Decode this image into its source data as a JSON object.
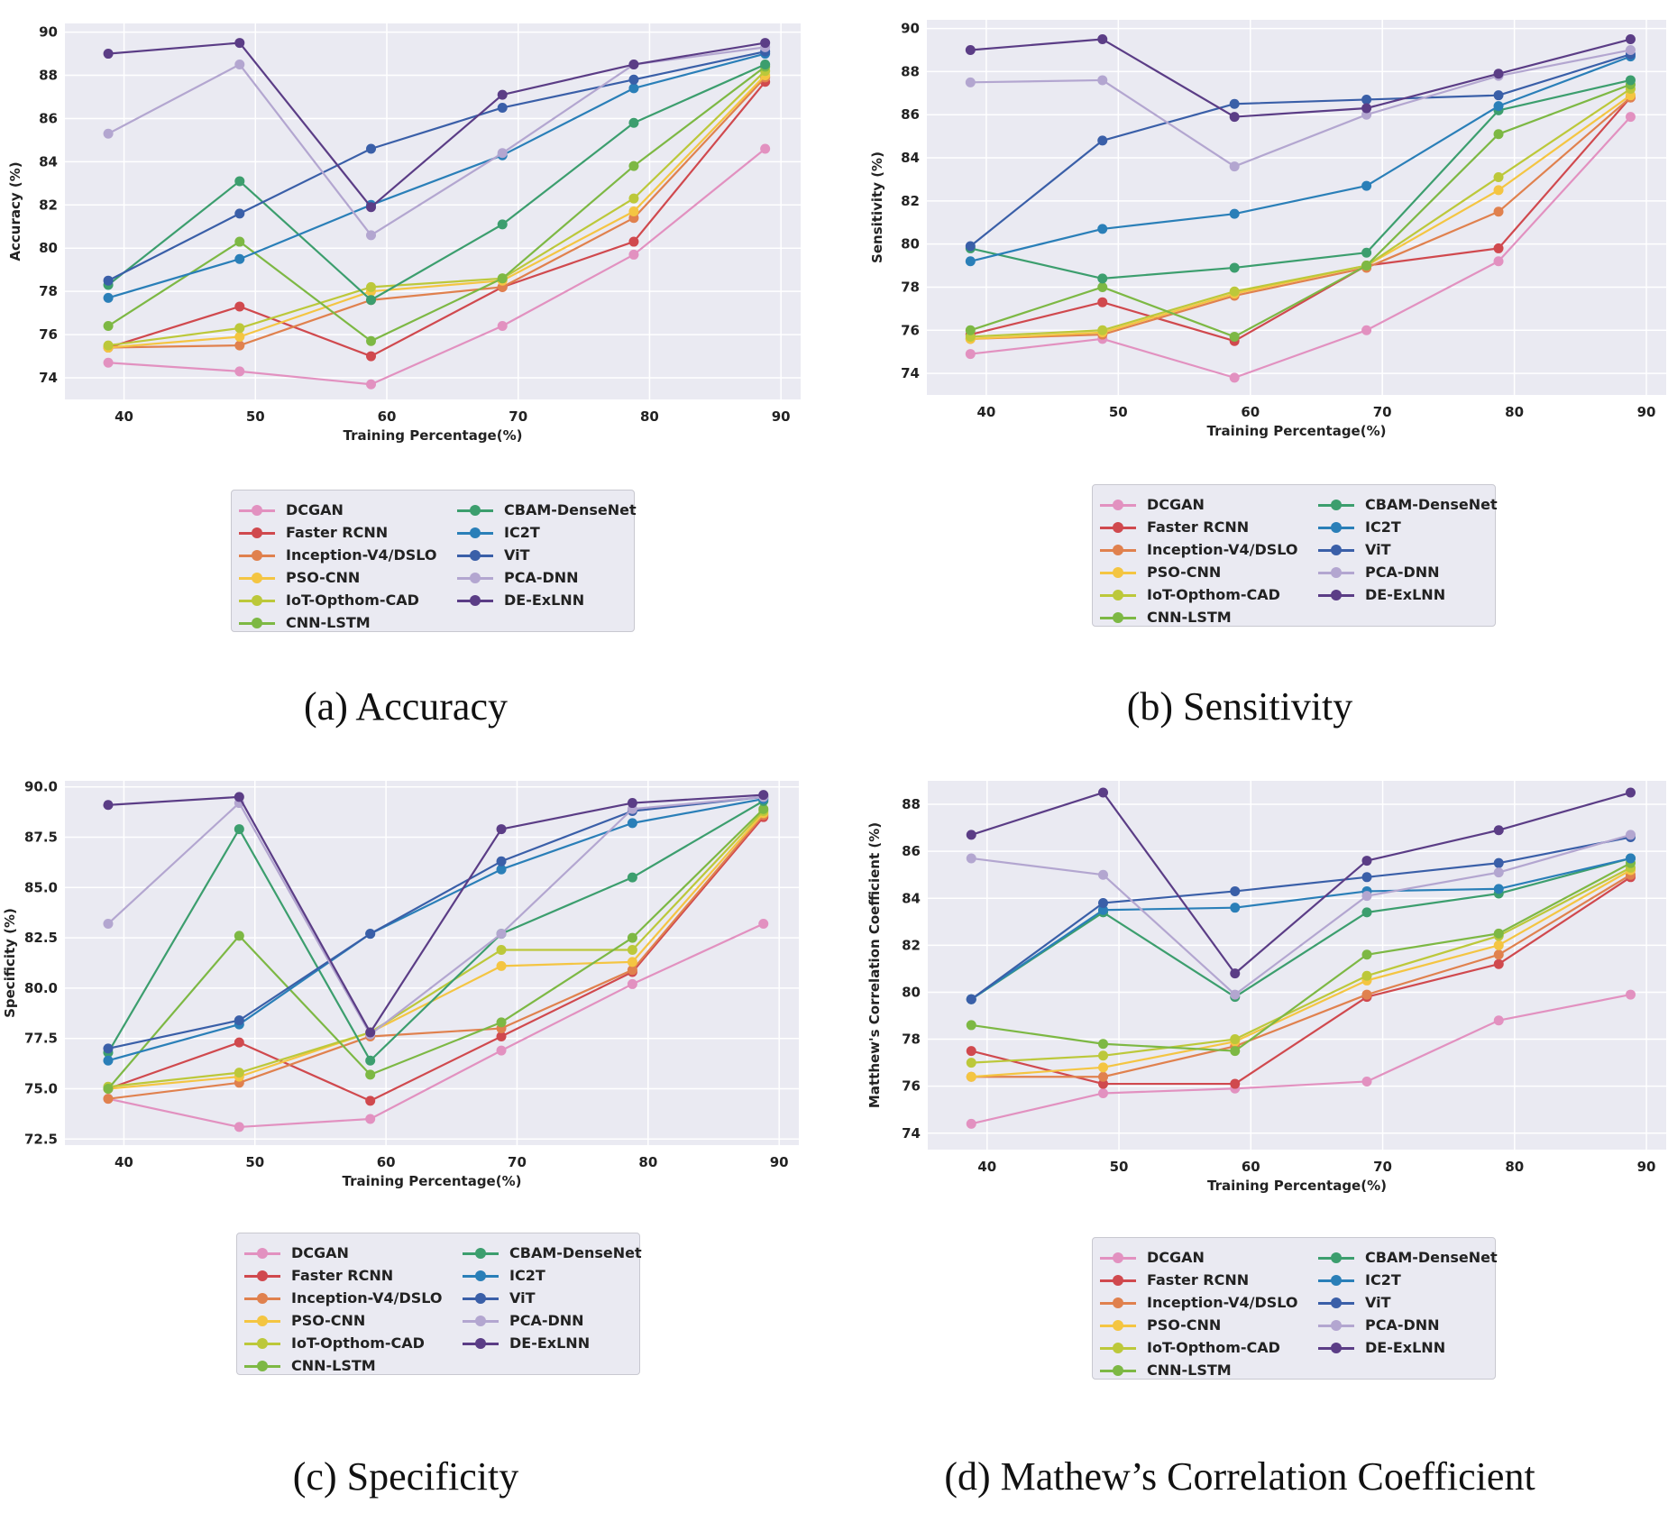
{
  "chart_data": [
    {
      "type": "line",
      "caption": "(a) Accuracy",
      "xlabel": "Training Percentage(%)",
      "ylabel": "Accuracy (%)",
      "x": [
        38.8,
        48.8,
        58.8,
        68.8,
        78.8,
        88.8
      ],
      "xticks": [
        40,
        50,
        60,
        70,
        80,
        90
      ],
      "xticklabels": [
        "40",
        "50",
        "60",
        "70",
        "80",
        "90"
      ],
      "xlim": [
        35.5,
        91.5
      ],
      "ylim": [
        73.0,
        90.4
      ],
      "yticks": [
        74,
        76,
        78,
        80,
        82,
        84,
        86,
        88,
        90
      ],
      "yticklabels": [
        "74",
        "76",
        "78",
        "80",
        "82",
        "84",
        "86",
        "88",
        "90"
      ],
      "grid": true,
      "legend_position": "below",
      "series": [
        {
          "name": "DCGAN",
          "color": "#e291c0",
          "values": [
            74.7,
            74.3,
            73.7,
            76.4,
            79.7,
            84.6
          ]
        },
        {
          "name": "Faster RCNN",
          "color": "#d0494e",
          "values": [
            75.4,
            77.3,
            75.0,
            78.2,
            80.3,
            87.7
          ]
        },
        {
          "name": "Inception-V4/DSLO",
          "color": "#e0814e",
          "values": [
            75.4,
            75.5,
            77.6,
            78.2,
            81.4,
            87.9
          ]
        },
        {
          "name": "PSO-CNN",
          "color": "#f4c542",
          "values": [
            75.4,
            75.9,
            78.0,
            78.5,
            81.7,
            88.0
          ]
        },
        {
          "name": "IoT-Opthom-CAD",
          "color": "#bcc83a",
          "values": [
            75.5,
            76.3,
            78.2,
            78.6,
            82.3,
            88.2
          ]
        },
        {
          "name": "CNN-LSTM",
          "color": "#7db844",
          "values": [
            76.4,
            80.3,
            75.7,
            78.6,
            83.8,
            88.4
          ]
        },
        {
          "name": "CBAM-DenseNet",
          "color": "#3c9e6e",
          "values": [
            78.3,
            83.1,
            77.6,
            81.1,
            85.8,
            88.5
          ]
        },
        {
          "name": "IC2T",
          "color": "#2a7fb8",
          "values": [
            77.7,
            79.5,
            82.0,
            84.3,
            87.4,
            89.0
          ]
        },
        {
          "name": "ViT",
          "color": "#3a5fa8",
          "values": [
            78.5,
            81.6,
            84.6,
            86.5,
            87.8,
            89.1
          ]
        },
        {
          "name": "PCA-DNN",
          "color": "#b3a6d0",
          "values": [
            85.3,
            88.5,
            80.6,
            84.4,
            88.5,
            89.3
          ]
        },
        {
          "name": "DE-ExLNN",
          "color": "#5b3d86",
          "values": [
            89.0,
            89.5,
            81.9,
            87.1,
            88.5,
            89.5
          ]
        }
      ]
    },
    {
      "type": "line",
      "caption": "(b) Sensitivity",
      "xlabel": "Training Percentage(%)",
      "ylabel": "Sensitivity (%)",
      "x": [
        38.8,
        48.8,
        58.8,
        68.8,
        78.8,
        88.8
      ],
      "xticks": [
        40,
        50,
        60,
        70,
        80,
        90
      ],
      "xticklabels": [
        "40",
        "50",
        "60",
        "70",
        "80",
        "90"
      ],
      "xlim": [
        35.5,
        91.5
      ],
      "ylim": [
        73.0,
        90.4
      ],
      "yticks": [
        74,
        76,
        78,
        80,
        82,
        84,
        86,
        88,
        90
      ],
      "yticklabels": [
        "74",
        "76",
        "78",
        "80",
        "82",
        "84",
        "86",
        "88",
        "90"
      ],
      "grid": true,
      "legend_position": "below",
      "series": [
        {
          "name": "DCGAN",
          "color": "#e291c0",
          "values": [
            74.9,
            75.6,
            73.8,
            76.0,
            79.2,
            85.9
          ]
        },
        {
          "name": "Faster RCNN",
          "color": "#d0494e",
          "values": [
            75.8,
            77.3,
            75.5,
            79.0,
            79.8,
            86.8
          ]
        },
        {
          "name": "Inception-V4/DSLO",
          "color": "#e0814e",
          "values": [
            75.6,
            75.8,
            77.6,
            78.9,
            81.5,
            86.8
          ]
        },
        {
          "name": "PSO-CNN",
          "color": "#f4c542",
          "values": [
            75.6,
            75.9,
            77.7,
            79.0,
            82.5,
            86.9
          ]
        },
        {
          "name": "IoT-Opthom-CAD",
          "color": "#bcc83a",
          "values": [
            75.7,
            76.0,
            77.8,
            79.0,
            83.1,
            87.2
          ]
        },
        {
          "name": "CNN-LSTM",
          "color": "#7db844",
          "values": [
            76.0,
            78.0,
            75.7,
            79.0,
            85.1,
            87.4
          ]
        },
        {
          "name": "CBAM-DenseNet",
          "color": "#3c9e6e",
          "values": [
            79.8,
            78.4,
            78.9,
            79.6,
            86.2,
            87.6
          ]
        },
        {
          "name": "IC2T",
          "color": "#2a7fb8",
          "values": [
            79.2,
            80.7,
            81.4,
            82.7,
            86.4,
            88.7
          ]
        },
        {
          "name": "ViT",
          "color": "#3a5fa8",
          "values": [
            79.9,
            84.8,
            86.5,
            86.7,
            86.9,
            88.8
          ]
        },
        {
          "name": "PCA-DNN",
          "color": "#b3a6d0",
          "values": [
            87.5,
            87.6,
            83.6,
            86.0,
            87.8,
            89.0
          ]
        },
        {
          "name": "DE-ExLNN",
          "color": "#5b3d86",
          "values": [
            89.0,
            89.5,
            85.9,
            86.3,
            87.9,
            89.5
          ]
        }
      ]
    },
    {
      "type": "line",
      "caption": "(c) Specificity",
      "xlabel": "Training Percentage(%)",
      "ylabel": "Specificity (%)",
      "x": [
        38.8,
        48.8,
        58.8,
        68.8,
        78.8,
        88.8
      ],
      "xticks": [
        40,
        50,
        60,
        70,
        80,
        90
      ],
      "xticklabels": [
        "40",
        "50",
        "60",
        "70",
        "80",
        "90"
      ],
      "xlim": [
        35.5,
        91.5
      ],
      "ylim": [
        72.2,
        90.3
      ],
      "yticks": [
        72.5,
        75.0,
        77.5,
        80.0,
        82.5,
        85.0,
        87.5,
        90.0
      ],
      "yticklabels": [
        "72.5",
        "75.0",
        "77.5",
        "80.0",
        "82.5",
        "85.0",
        "87.5",
        "90.0"
      ],
      "grid": true,
      "legend_position": "below",
      "series": [
        {
          "name": "DCGAN",
          "color": "#e291c0",
          "values": [
            74.5,
            73.1,
            73.5,
            76.9,
            80.2,
            83.2
          ]
        },
        {
          "name": "Faster RCNN",
          "color": "#d0494e",
          "values": [
            75.0,
            77.3,
            74.4,
            77.6,
            80.8,
            88.5
          ]
        },
        {
          "name": "Inception-V4/DSLO",
          "color": "#e0814e",
          "values": [
            74.5,
            75.3,
            77.6,
            78.0,
            80.9,
            88.6
          ]
        },
        {
          "name": "PSO-CNN",
          "color": "#f4c542",
          "values": [
            75.0,
            75.6,
            77.8,
            81.1,
            81.3,
            88.7
          ]
        },
        {
          "name": "IoT-Opthom-CAD",
          "color": "#bcc83a",
          "values": [
            75.1,
            75.8,
            77.8,
            81.9,
            81.9,
            88.8
          ]
        },
        {
          "name": "CNN-LSTM",
          "color": "#7db844",
          "values": [
            75.0,
            82.6,
            75.7,
            78.3,
            82.5,
            88.9
          ]
        },
        {
          "name": "CBAM-DenseNet",
          "color": "#3c9e6e",
          "values": [
            76.8,
            87.9,
            76.4,
            82.7,
            85.5,
            89.3
          ]
        },
        {
          "name": "IC2T",
          "color": "#2a7fb8",
          "values": [
            76.4,
            78.2,
            82.7,
            85.9,
            88.2,
            89.4
          ]
        },
        {
          "name": "ViT",
          "color": "#3a5fa8",
          "values": [
            77.0,
            78.4,
            82.7,
            86.3,
            88.8,
            89.5
          ]
        },
        {
          "name": "PCA-DNN",
          "color": "#b3a6d0",
          "values": [
            83.2,
            89.2,
            77.7,
            82.7,
            88.9,
            89.5
          ]
        },
        {
          "name": "DE-ExLNN",
          "color": "#5b3d86",
          "values": [
            89.1,
            89.5,
            77.8,
            87.9,
            89.2,
            89.6
          ]
        }
      ]
    },
    {
      "type": "line",
      "caption": "(d) Mathew’s Correlation Coefficient",
      "xlabel": "Training Percentage(%)",
      "ylabel": "Matthew's Correlation Coefficient (%)",
      "x": [
        38.8,
        48.8,
        58.8,
        68.8,
        78.8,
        88.8
      ],
      "xticks": [
        40,
        50,
        60,
        70,
        80,
        90
      ],
      "xticklabels": [
        "40",
        "50",
        "60",
        "70",
        "80",
        "90"
      ],
      "xlim": [
        35.5,
        91.5
      ],
      "ylim": [
        73.3,
        89.0
      ],
      "yticks": [
        74,
        76,
        78,
        80,
        82,
        84,
        86,
        88
      ],
      "yticklabels": [
        "74",
        "76",
        "78",
        "80",
        "82",
        "84",
        "86",
        "88"
      ],
      "grid": true,
      "legend_position": "below",
      "series": [
        {
          "name": "DCGAN",
          "color": "#e291c0",
          "values": [
            74.4,
            75.7,
            75.9,
            76.2,
            78.8,
            79.9
          ]
        },
        {
          "name": "Faster RCNN",
          "color": "#d0494e",
          "values": [
            77.5,
            76.1,
            76.1,
            79.8,
            81.2,
            84.9
          ]
        },
        {
          "name": "Inception-V4/DSLO",
          "color": "#e0814e",
          "values": [
            76.4,
            76.4,
            77.7,
            79.9,
            81.6,
            85.0
          ]
        },
        {
          "name": "PSO-CNN",
          "color": "#f4c542",
          "values": [
            76.4,
            76.8,
            77.9,
            80.5,
            82.0,
            85.2
          ]
        },
        {
          "name": "IoT-Opthom-CAD",
          "color": "#bcc83a",
          "values": [
            77.0,
            77.3,
            78.0,
            80.7,
            82.4,
            85.3
          ]
        },
        {
          "name": "CNN-LSTM",
          "color": "#7db844",
          "values": [
            78.6,
            77.8,
            77.5,
            81.6,
            82.5,
            85.5
          ]
        },
        {
          "name": "CBAM-DenseNet",
          "color": "#3c9e6e",
          "values": [
            79.7,
            83.4,
            79.8,
            83.4,
            84.2,
            85.7
          ]
        },
        {
          "name": "IC2T",
          "color": "#2a7fb8",
          "values": [
            79.7,
            83.5,
            83.6,
            84.3,
            84.4,
            85.7
          ]
        },
        {
          "name": "ViT",
          "color": "#3a5fa8",
          "values": [
            79.7,
            83.8,
            84.3,
            84.9,
            85.5,
            86.6
          ]
        },
        {
          "name": "PCA-DNN",
          "color": "#b3a6d0",
          "values": [
            85.7,
            85.0,
            79.9,
            84.1,
            85.1,
            86.7
          ]
        },
        {
          "name": "DE-ExLNN",
          "color": "#5b3d86",
          "values": [
            86.7,
            88.5,
            80.8,
            85.6,
            86.9,
            88.5
          ]
        }
      ]
    }
  ]
}
